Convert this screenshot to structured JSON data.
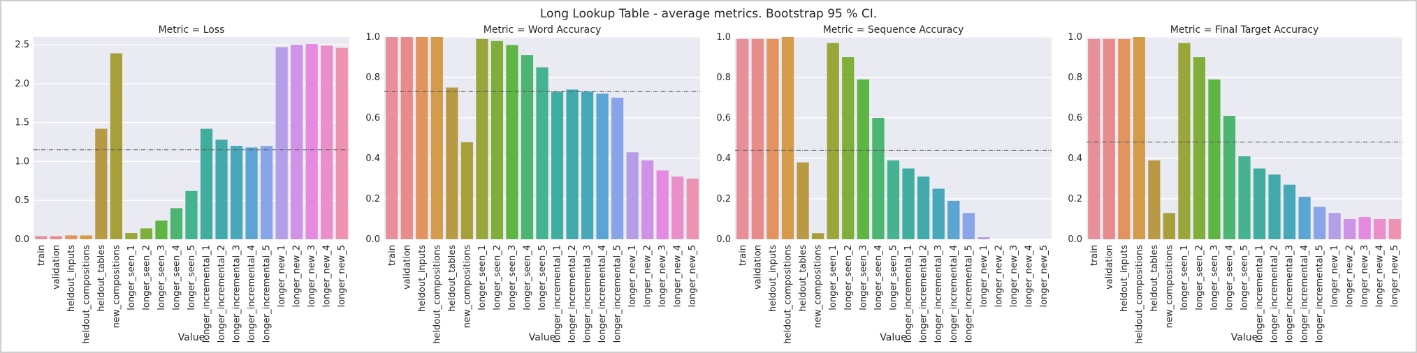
{
  "figure": {
    "title": "Long Lookup Table - average metrics. Bootstrap 95 % CI."
  },
  "palette": [
    "#e8909a",
    "#e88b8b",
    "#e3935e",
    "#d49c4a",
    "#b89a44",
    "#a7a03a",
    "#98a63a",
    "#7faf3a",
    "#5db544",
    "#4cb571",
    "#45b290",
    "#40ad9f",
    "#42aaab",
    "#47a8b9",
    "#5aa5d3",
    "#89a4e8",
    "#b59ee8",
    "#d092e6",
    "#e58ae0",
    "#ea8fc9",
    "#ed93b1"
  ],
  "chart_data": [
    {
      "type": "bar",
      "title": "Metric = Loss",
      "xlabel": "Value",
      "ylabel": "",
      "ylim": [
        0,
        2.6
      ],
      "yticks": [
        "0.0",
        "0.5",
        "1.0",
        "1.5",
        "2.0",
        "2.5"
      ],
      "ytick_values": [
        0,
        0.5,
        1.0,
        1.5,
        2.0,
        2.5
      ],
      "reference_line": 1.15,
      "categories": [
        "train",
        "validation",
        "heldout_inputs",
        "heldout_compositions",
        "heldout_tables",
        "new_compositions",
        "longer_seen_1",
        "longer_seen_2",
        "longer_seen_3",
        "longer_seen_4",
        "longer_seen_5",
        "longer_incremental_1",
        "longer_incremental_2",
        "longer_incremental_3",
        "longer_incremental_4",
        "longer_incremental_5",
        "longer_new_1",
        "longer_new_2",
        "longer_new_3",
        "longer_new_4",
        "longer_new_5"
      ],
      "values": [
        0.04,
        0.04,
        0.05,
        0.05,
        1.42,
        2.39,
        0.08,
        0.14,
        0.24,
        0.4,
        0.62,
        1.42,
        1.28,
        1.2,
        1.18,
        1.2,
        2.47,
        2.5,
        2.51,
        2.49,
        2.46
      ]
    },
    {
      "type": "bar",
      "title": "Metric = Word Accuracy",
      "xlabel": "Value",
      "ylabel": "",
      "ylim": [
        0,
        1.0
      ],
      "yticks": [
        "0.0",
        "0.2",
        "0.4",
        "0.6",
        "0.8",
        "1.0"
      ],
      "ytick_values": [
        0,
        0.2,
        0.4,
        0.6,
        0.8,
        1.0
      ],
      "reference_line": 0.73,
      "categories": [
        "train",
        "validation",
        "heldout_inputs",
        "heldout_compositions",
        "heldout_tables",
        "new_compositions",
        "longer_seen_1",
        "longer_seen_2",
        "longer_seen_3",
        "longer_seen_4",
        "longer_seen_5",
        "longer_incremental_1",
        "longer_incremental_2",
        "longer_incremental_3",
        "longer_incremental_4",
        "longer_incremental_5",
        "longer_new_1",
        "longer_new_2",
        "longer_new_3",
        "longer_new_4",
        "longer_new_5"
      ],
      "values": [
        1.0,
        1.0,
        1.0,
        1.0,
        0.75,
        0.48,
        0.99,
        0.98,
        0.96,
        0.91,
        0.85,
        0.73,
        0.74,
        0.73,
        0.72,
        0.7,
        0.43,
        0.39,
        0.34,
        0.31,
        0.3
      ]
    },
    {
      "type": "bar",
      "title": "Metric = Sequence Accuracy",
      "xlabel": "Value",
      "ylabel": "",
      "ylim": [
        0,
        1.0
      ],
      "yticks": [
        "0.0",
        "0.2",
        "0.4",
        "0.6",
        "0.8",
        "1.0"
      ],
      "ytick_values": [
        0,
        0.2,
        0.4,
        0.6,
        0.8,
        1.0
      ],
      "reference_line": 0.44,
      "categories": [
        "train",
        "validation",
        "heldout_inputs",
        "heldout_compositions",
        "heldout_tables",
        "new_compositions",
        "longer_seen_1",
        "longer_seen_2",
        "longer_seen_3",
        "longer_seen_4",
        "longer_seen_5",
        "longer_incremental_1",
        "longer_incremental_2",
        "longer_incremental_3",
        "longer_incremental_4",
        "longer_incremental_5",
        "longer_new_1",
        "longer_new_2",
        "longer_new_3",
        "longer_new_4",
        "longer_new_5"
      ],
      "values": [
        0.99,
        0.99,
        0.99,
        1.0,
        0.38,
        0.03,
        0.97,
        0.9,
        0.79,
        0.6,
        0.39,
        0.35,
        0.31,
        0.25,
        0.19,
        0.13,
        0.01,
        0.0,
        0.0,
        0.0,
        0.0
      ]
    },
    {
      "type": "bar",
      "title": "Metric = Final Target Accuracy",
      "xlabel": "Value",
      "ylabel": "",
      "ylim": [
        0,
        1.0
      ],
      "yticks": [
        "0.0",
        "0.2",
        "0.4",
        "0.6",
        "0.8",
        "1.0"
      ],
      "ytick_values": [
        0,
        0.2,
        0.4,
        0.6,
        0.8,
        1.0
      ],
      "reference_line": 0.48,
      "categories": [
        "train",
        "validation",
        "heldout_inputs",
        "heldout_compositions",
        "heldout_tables",
        "new_compositions",
        "longer_seen_1",
        "longer_seen_2",
        "longer_seen_3",
        "longer_seen_4",
        "longer_seen_5",
        "longer_incremental_1",
        "longer_incremental_2",
        "longer_incremental_3",
        "longer_incremental_4",
        "longer_incremental_5",
        "longer_new_1",
        "longer_new_2",
        "longer_new_3",
        "longer_new_4",
        "longer_new_5"
      ],
      "values": [
        0.99,
        0.99,
        0.99,
        1.0,
        0.39,
        0.13,
        0.97,
        0.9,
        0.79,
        0.61,
        0.41,
        0.35,
        0.32,
        0.27,
        0.21,
        0.16,
        0.13,
        0.1,
        0.11,
        0.1,
        0.1
      ]
    }
  ]
}
